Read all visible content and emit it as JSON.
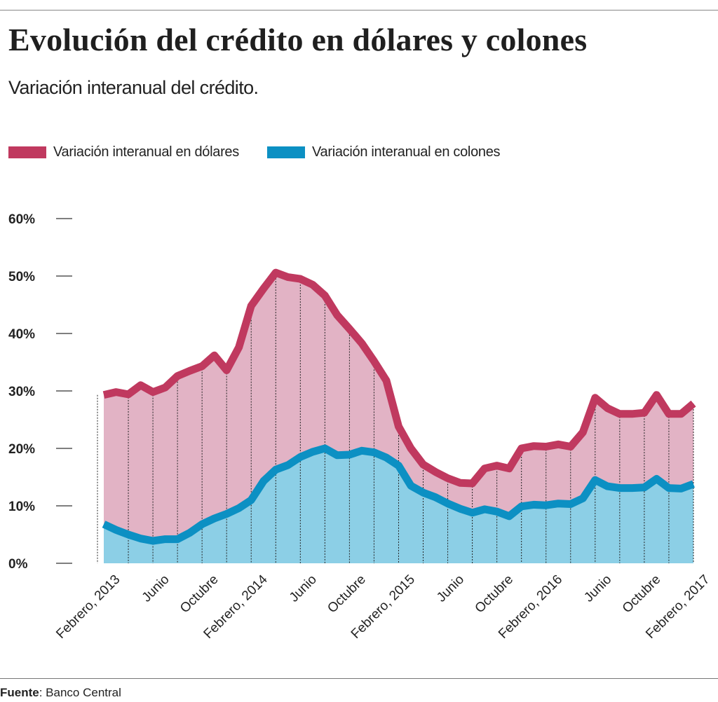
{
  "header": {
    "title": "Evolución del crédito en dólares y colones",
    "subtitle": "Variación interanual del crédito."
  },
  "legend": {
    "dollars_label": "Variación interanual en dólares",
    "colones_label": "Variación interanual en colones"
  },
  "colors": {
    "dollars_line": "#c0395f",
    "dollars_fill": "#e2b3c5",
    "colones_line": "#0c90c3",
    "colones_fill": "#8ccfe6",
    "grid": "#333333"
  },
  "footer": {
    "source_label": "Fuente",
    "source_text": ": Banco Central"
  },
  "chart_data": {
    "type": "area",
    "title": "Evolución del crédito en dólares y colones",
    "subtitle": "Variación interanual del crédito.",
    "xlabel": "",
    "ylabel": "",
    "ylim": [
      0,
      60
    ],
    "yticks": [
      0,
      10,
      20,
      30,
      40,
      50,
      60
    ],
    "ytick_labels": [
      "0%",
      "10%",
      "20%",
      "30%",
      "40%",
      "50%",
      "60%"
    ],
    "x_tick_labels": [
      {
        "index": 0,
        "label": "Febrero, 2013"
      },
      {
        "index": 4,
        "label": "Junio"
      },
      {
        "index": 8,
        "label": "Octubre"
      },
      {
        "index": 12,
        "label": "Febrero, 2014"
      },
      {
        "index": 16,
        "label": "Junio"
      },
      {
        "index": 20,
        "label": "Octubre"
      },
      {
        "index": 24,
        "label": "Febrero, 2015"
      },
      {
        "index": 28,
        "label": "Junio"
      },
      {
        "index": 32,
        "label": "Octubre"
      },
      {
        "index": 36,
        "label": "Febrero, 2016"
      },
      {
        "index": 40,
        "label": "Junio"
      },
      {
        "index": 44,
        "label": "Octubre"
      },
      {
        "index": 48,
        "label": "Febrero, 2017"
      }
    ],
    "series": [
      {
        "name": "Variación interanual en dólares",
        "values": [
          29.3,
          29.8,
          29.4,
          31.0,
          29.8,
          30.6,
          32.6,
          33.5,
          34.3,
          36.2,
          33.6,
          37.6,
          44.8,
          47.8,
          50.6,
          49.8,
          49.5,
          48.5,
          46.6,
          43.2,
          40.8,
          38.3,
          35.2,
          31.8,
          23.8,
          20.0,
          17.2,
          15.9,
          14.8,
          14.0,
          13.9,
          16.5,
          17.0,
          16.5,
          20.0,
          20.4,
          20.3,
          20.7,
          20.3,
          22.8,
          28.8,
          27.0,
          26.0,
          26.0,
          26.2,
          29.3,
          26.0,
          26.0,
          27.8
        ]
      },
      {
        "name": "Variación interanual en colones",
        "values": [
          6.8,
          5.8,
          5.0,
          4.3,
          3.9,
          4.2,
          4.2,
          5.3,
          6.8,
          7.8,
          8.6,
          9.6,
          11.0,
          14.3,
          16.3,
          17.1,
          18.5,
          19.4,
          20.0,
          18.8,
          18.9,
          19.6,
          19.3,
          18.4,
          17.0,
          13.5,
          12.3,
          11.5,
          10.4,
          9.5,
          8.8,
          9.4,
          9.0,
          8.2,
          9.9,
          10.2,
          10.1,
          10.4,
          10.3,
          11.3,
          14.5,
          13.4,
          13.1,
          13.1,
          13.2,
          14.7,
          13.1,
          13.0,
          13.8
        ]
      }
    ]
  }
}
